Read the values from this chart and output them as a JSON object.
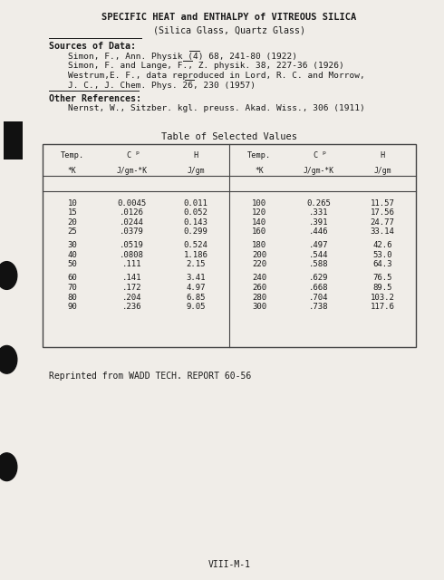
{
  "title1": "SPECIFIC HEAT and ENTHALPY of VITREOUS SILICA",
  "title2": "(Silica Glass, Quartz Glass)",
  "sources_label": "Sources of Data:",
  "sources": [
    "Simon, F., Ann. Physik (4) 68, 241-80 (1922)",
    "Simon, F. and Lange, F., Z. physik. 38, 227-36 (1926)",
    "Westrum,E. F., data reproduced in Lord, R. C. and Morrow,",
    "J. C., J. Chem. Phys. 26, 230 (1957)"
  ],
  "other_label": "Other References:",
  "other_refs": [
    "Nernst, W., Sitzber. kgl. preuss. Akad. Wiss., 306 (1911)"
  ],
  "table_title": "Table of Selected Values",
  "col_headers1": [
    "Temp.",
    "C",
    "H",
    "Temp.",
    "C",
    "H"
  ],
  "col_headers2": [
    "*K",
    "J/gm-*K",
    "J/gm",
    "*K",
    "J/gm-*K",
    "J/gm"
  ],
  "table_data_left": [
    [
      "10",
      "0.0045",
      "0.011"
    ],
    [
      "15",
      ".0126",
      "0.052"
    ],
    [
      "20",
      ".0244",
      "0.143"
    ],
    [
      "25",
      ".0379",
      "0.299"
    ],
    [
      "",
      "",
      ""
    ],
    [
      "30",
      ".0519",
      "0.524"
    ],
    [
      "40",
      ".0808",
      "1.186"
    ],
    [
      "50",
      ".111",
      "2.15"
    ],
    [
      "",
      "",
      ""
    ],
    [
      "60",
      ".141",
      "3.41"
    ],
    [
      "70",
      ".172",
      "4.97"
    ],
    [
      "80",
      ".204",
      "6.85"
    ],
    [
      "90",
      ".236",
      "9.05"
    ]
  ],
  "table_data_right": [
    [
      "100",
      "0.265",
      "11.57"
    ],
    [
      "120",
      ".331",
      "17.56"
    ],
    [
      "140",
      ".391",
      "24.77"
    ],
    [
      "160",
      ".446",
      "33.14"
    ],
    [
      "",
      "",
      ""
    ],
    [
      "180",
      ".497",
      "42.6"
    ],
    [
      "200",
      ".544",
      "53.0"
    ],
    [
      "220",
      ".588",
      "64.3"
    ],
    [
      "",
      "",
      ""
    ],
    [
      "240",
      ".629",
      "76.5"
    ],
    [
      "260",
      ".668",
      "89.5"
    ],
    [
      "280",
      ".704",
      "103.2"
    ],
    [
      "300",
      ".738",
      "117.6"
    ]
  ],
  "reprint": "Reprinted from WADD TECH. REPORT 60-56",
  "footer": "VIII-M-1",
  "bg_color": "#f0ede8",
  "text_color": "#1a1a1a"
}
